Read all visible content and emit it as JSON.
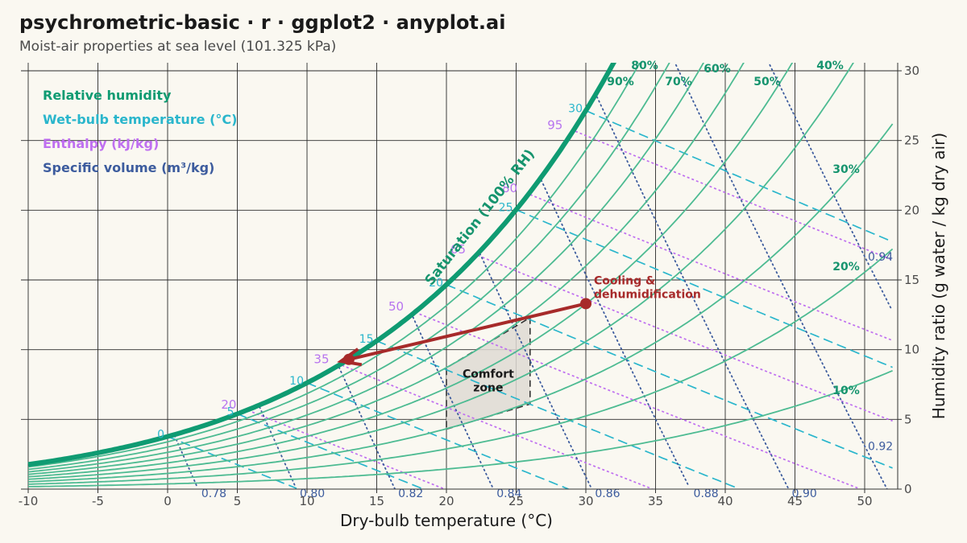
{
  "header": {
    "title": "psychrometric-basic · r · ggplot2 · anyplot.ai",
    "subtitle": "Moist-air properties at sea level (101.325 kPa)"
  },
  "colors": {
    "saturation": "#0f9b72",
    "rh": "#4dbb92",
    "wet_bulb": "#2ab6cc",
    "enthalpy": "#bf6ff0",
    "volume": "#3d5c9e",
    "process": "#a72a2a",
    "comfort_fill": "#dedad4",
    "grid": "#2a2a2a",
    "background": "#faf8f1"
  },
  "chart_data": {
    "type": "line",
    "title": "psychrometric-basic · r · ggplot2 · anyplot.ai",
    "subtitle": "Moist-air properties at sea level (101.325 kPa)",
    "xlabel": "Dry-bulb temperature (°C)",
    "ylabel": "Humidity ratio (g water / kg dry air)",
    "xlim": [
      -10,
      52.5
    ],
    "ylim": [
      0,
      30
    ],
    "x_ticks": [
      -10,
      -5,
      0,
      5,
      10,
      15,
      20,
      25,
      30,
      35,
      40,
      45,
      50
    ],
    "y_ticks": [
      0,
      5,
      10,
      15,
      20,
      25,
      30
    ],
    "y_axis_position": "right",
    "grid": true,
    "pressure_kpa": 101.325,
    "legend": {
      "position": "top-left",
      "entries": [
        {
          "label": "Relative humidity",
          "color": "#0f9b72"
        },
        {
          "label": "Wet-bulb temperature (°C)",
          "color": "#2ab6cc"
        },
        {
          "label": "Enthalpy (kJ/kg)",
          "color": "#bf6ff0"
        },
        {
          "label": "Specific volume (m³/kg)",
          "color": "#3d5c9e"
        }
      ]
    },
    "saturation": {
      "label": "Saturation (100% RH)"
    },
    "rh_curves": [
      10,
      20,
      30,
      40,
      50,
      60,
      70,
      80,
      90
    ],
    "rh_labels": [
      {
        "rh": 90,
        "text": "90%"
      },
      {
        "rh": 80,
        "text": "80%"
      },
      {
        "rh": 70,
        "text": "70%"
      },
      {
        "rh": 60,
        "text": "60%"
      },
      {
        "rh": 50,
        "text": "50%"
      },
      {
        "rh": 40,
        "text": "40%"
      },
      {
        "rh": 30,
        "text": "30%"
      },
      {
        "rh": 20,
        "text": "20%"
      },
      {
        "rh": 10,
        "text": "10%"
      }
    ],
    "wet_bulb_lines": [
      {
        "twb": 0,
        "label": "0"
      },
      {
        "twb": 5,
        "label": "5"
      },
      {
        "twb": 10,
        "label": "10"
      },
      {
        "twb": 15,
        "label": "15"
      },
      {
        "twb": 20,
        "label": "20"
      },
      {
        "twb": 25,
        "label": "25"
      },
      {
        "twb": 30,
        "label": "30"
      }
    ],
    "enthalpy_lines": [
      {
        "h": 20,
        "label": "20"
      },
      {
        "h": 35,
        "label": "35"
      },
      {
        "h": 50,
        "label": "50"
      },
      {
        "h": 65,
        "label": "65"
      },
      {
        "h": 80,
        "label": "80"
      },
      {
        "h": 95,
        "label": "95"
      }
    ],
    "volume_lines": [
      {
        "v": 0.78,
        "label": "0.78"
      },
      {
        "v": 0.8,
        "label": "0.80"
      },
      {
        "v": 0.82,
        "label": "0.82"
      },
      {
        "v": 0.84,
        "label": "0.84"
      },
      {
        "v": 0.86,
        "label": "0.86"
      },
      {
        "v": 0.88,
        "label": "0.88"
      },
      {
        "v": 0.9,
        "label": "0.90"
      },
      {
        "v": 0.92,
        "label": "0.92"
      },
      {
        "v": 0.94,
        "label": "0.94"
      }
    ],
    "comfort_zone": {
      "label": "Comfort zone",
      "polygon": [
        [
          20,
          4.3
        ],
        [
          26,
          6.1
        ],
        [
          26,
          12.3
        ],
        [
          20,
          8.7
        ]
      ]
    },
    "process": {
      "label": "Cooling & dehumidification",
      "start": {
        "t": 30,
        "w": 13.3
      },
      "end": {
        "t": 13,
        "w": 9.3
      }
    }
  }
}
